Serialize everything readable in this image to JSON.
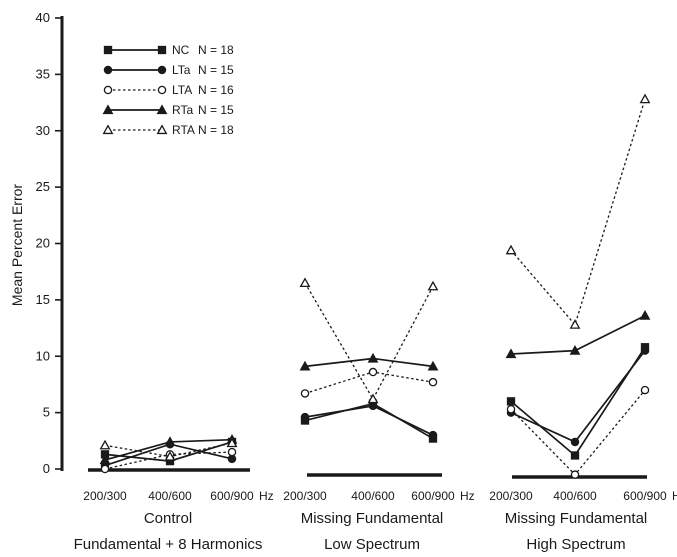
{
  "chart_data": {
    "type": "line",
    "ylabel": "Mean Percent Error",
    "ylim": [
      0,
      40
    ],
    "yticks": [
      "0",
      "5",
      "10",
      "15",
      "20",
      "25",
      "30",
      "35",
      "40"
    ],
    "hz_unit": "Hz",
    "grid": false,
    "legend_position": "top-left",
    "groups": [
      {
        "title_lines": [
          "Control",
          "Fundamental + 8 Harmonics"
        ],
        "categories": [
          "200/300",
          "400/600",
          "600/900"
        ]
      },
      {
        "title_lines": [
          "Missing Fundamental",
          "Low Spectrum"
        ],
        "categories": [
          "200/300",
          "400/600",
          "600/900"
        ]
      },
      {
        "title_lines": [
          "Missing Fundamental",
          "High Spectrum"
        ],
        "categories": [
          "200/300",
          "400/600",
          "600/900"
        ]
      }
    ],
    "series": [
      {
        "name": "NC",
        "n_label": "N = 18",
        "marker": "square-filled",
        "dash": false,
        "values": [
          [
            1.3,
            0.7,
            2.4
          ],
          [
            4.3,
            5.8,
            2.7
          ],
          [
            6.0,
            1.2,
            10.8
          ]
        ]
      },
      {
        "name": "LTa",
        "n_label": "N = 15",
        "marker": "circle-filled",
        "dash": false,
        "values": [
          [
            0.3,
            2.2,
            0.9
          ],
          [
            4.6,
            5.6,
            3.0
          ],
          [
            5.0,
            2.4,
            10.5
          ]
        ]
      },
      {
        "name": "LTA",
        "n_label": "N = 16",
        "marker": "circle-open",
        "dash": true,
        "values": [
          [
            0.0,
            1.3,
            1.5
          ],
          [
            6.7,
            8.6,
            7.7
          ],
          [
            5.3,
            -0.5,
            7.0
          ]
        ]
      },
      {
        "name": "RTa",
        "n_label": "N = 15",
        "marker": "triangle-filled",
        "dash": false,
        "values": [
          [
            0.8,
            2.4,
            2.6
          ],
          [
            9.1,
            9.8,
            9.1
          ],
          [
            10.2,
            10.5,
            13.6
          ]
        ]
      },
      {
        "name": "RTA",
        "n_label": "N = 18",
        "marker": "triangle-open",
        "dash": true,
        "values": [
          [
            2.1,
            1.1,
            2.3
          ],
          [
            16.5,
            6.2,
            16.2
          ],
          [
            19.4,
            12.8,
            32.8
          ]
        ]
      }
    ],
    "colors": {
      "ink": "#1a1a1a",
      "background": "#ffffff"
    }
  }
}
